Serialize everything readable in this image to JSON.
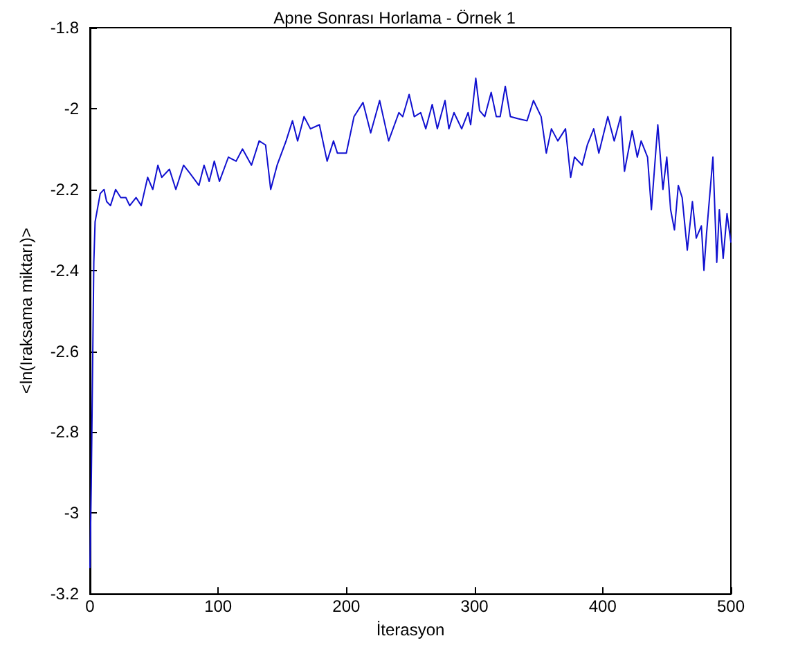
{
  "chart_data": {
    "type": "line",
    "title": "Apne Sonrası Horlama - Örnek 1",
    "xlabel": "İterasyon",
    "ylabel": "<ln(Iraksama miktarı)>",
    "xlim": [
      0,
      500
    ],
    "xticks": [
      0,
      100,
      200,
      300,
      400,
      500
    ],
    "ylim": [
      -3.2,
      -1.8
    ],
    "yticks": [
      -3.2,
      -3,
      -2.8,
      -2.6,
      -2.4,
      -2.2,
      -2,
      -1.8
    ],
    "grid": false,
    "marker": "none",
    "line_style": "solid",
    "series": [
      {
        "color": "#1010d0",
        "x": [
          0,
          1,
          3,
          4,
          8,
          11,
          13,
          16,
          20,
          24,
          28,
          31,
          36,
          40,
          45,
          49,
          53,
          56,
          62,
          67,
          73,
          78,
          85,
          89,
          93,
          97,
          101,
          108,
          114,
          119,
          126,
          132,
          137,
          141,
          146,
          153,
          158,
          162,
          167,
          172,
          179,
          185,
          190,
          193,
          200,
          206,
          213,
          219,
          226,
          233,
          241,
          244,
          249,
          253,
          258,
          262,
          267,
          271,
          277,
          280,
          284,
          290,
          295,
          297,
          301,
          304,
          308,
          313,
          317,
          320,
          324,
          328,
          334,
          341,
          346,
          352,
          356,
          360,
          365,
          371,
          375,
          378,
          384,
          388,
          393,
          397,
          404,
          409,
          414,
          417,
          423,
          427,
          430,
          435,
          438,
          443,
          447,
          450,
          453,
          456,
          459,
          462,
          466,
          470,
          473,
          477,
          479,
          481,
          486,
          489,
          491,
          494,
          497,
          500
        ],
        "values": [
          -3.135,
          -2.93,
          -2.38,
          -2.28,
          -2.21,
          -2.2,
          -2.23,
          -2.24,
          -2.2,
          -2.22,
          -2.22,
          -2.24,
          -2.22,
          -2.24,
          -2.17,
          -2.2,
          -2.14,
          -2.17,
          -2.15,
          -2.2,
          -2.14,
          -2.16,
          -2.19,
          -2.14,
          -2.18,
          -2.13,
          -2.18,
          -2.12,
          -2.13,
          -2.1,
          -2.14,
          -2.08,
          -2.09,
          -2.2,
          -2.14,
          -2.08,
          -2.03,
          -2.08,
          -2.02,
          -2.05,
          -2.04,
          -2.13,
          -2.08,
          -2.11,
          -2.11,
          -2.02,
          -1.985,
          -2.06,
          -1.98,
          -2.08,
          -2.01,
          -2.02,
          -1.965,
          -2.02,
          -2.01,
          -2.05,
          -1.99,
          -2.05,
          -1.98,
          -2.05,
          -2.01,
          -2.05,
          -2.01,
          -2.04,
          -1.925,
          -2.005,
          -2.02,
          -1.96,
          -2.02,
          -2.02,
          -1.945,
          -2.02,
          -2.025,
          -2.03,
          -1.98,
          -2.02,
          -2.11,
          -2.05,
          -2.08,
          -2.05,
          -2.17,
          -2.12,
          -2.14,
          -2.09,
          -2.05,
          -2.11,
          -2.02,
          -2.08,
          -2.02,
          -2.155,
          -2.055,
          -2.12,
          -2.08,
          -2.12,
          -2.25,
          -2.04,
          -2.2,
          -2.12,
          -2.25,
          -2.3,
          -2.19,
          -2.22,
          -2.35,
          -2.23,
          -2.32,
          -2.29,
          -2.4,
          -2.31,
          -2.12,
          -2.38,
          -2.25,
          -2.37,
          -2.26,
          -2.33
        ]
      }
    ]
  }
}
